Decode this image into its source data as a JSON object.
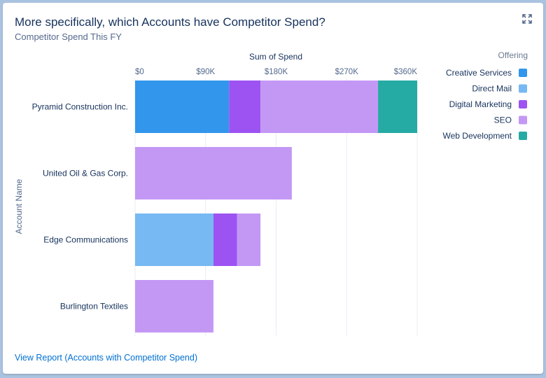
{
  "card": {
    "title": "More specifically, which Accounts have Competitor Spend?",
    "subtitle": "Competitor Spend This FY",
    "expand_icon": "expand-icon",
    "footer_link": "View Report (Accounts with Competitor Spend)"
  },
  "chart_data": {
    "type": "bar",
    "orientation": "horizontal",
    "stacked": true,
    "title": "",
    "xlabel": "Sum of Spend",
    "ylabel": "Account Name",
    "xlim": [
      0,
      360000
    ],
    "x_ticks": [
      "$0",
      "$90K",
      "$180K",
      "$270K",
      "$360K"
    ],
    "x_tick_values": [
      0,
      90000,
      180000,
      270000,
      360000
    ],
    "grid": true,
    "legend_title": "Offering",
    "legend_position": "right",
    "categories": [
      "Pyramid Construction Inc.",
      "United Oil & Gas Corp.",
      "Edge Communications",
      "Burlington Textiles"
    ],
    "series": [
      {
        "name": "Creative Services",
        "color": "#3296ed",
        "values": [
          120000,
          0,
          0,
          0
        ]
      },
      {
        "name": "Direct Mail",
        "color": "#77b9f2",
        "values": [
          0,
          0,
          100000,
          0
        ]
      },
      {
        "name": "Digital Marketing",
        "color": "#9d53f2",
        "values": [
          40000,
          0,
          30000,
          0
        ]
      },
      {
        "name": "SEO",
        "color": "#c398f5",
        "values": [
          150000,
          200000,
          30000,
          100000
        ]
      },
      {
        "name": "Web Development",
        "color": "#26aba4",
        "values": [
          50000,
          0,
          0,
          0
        ]
      }
    ]
  }
}
